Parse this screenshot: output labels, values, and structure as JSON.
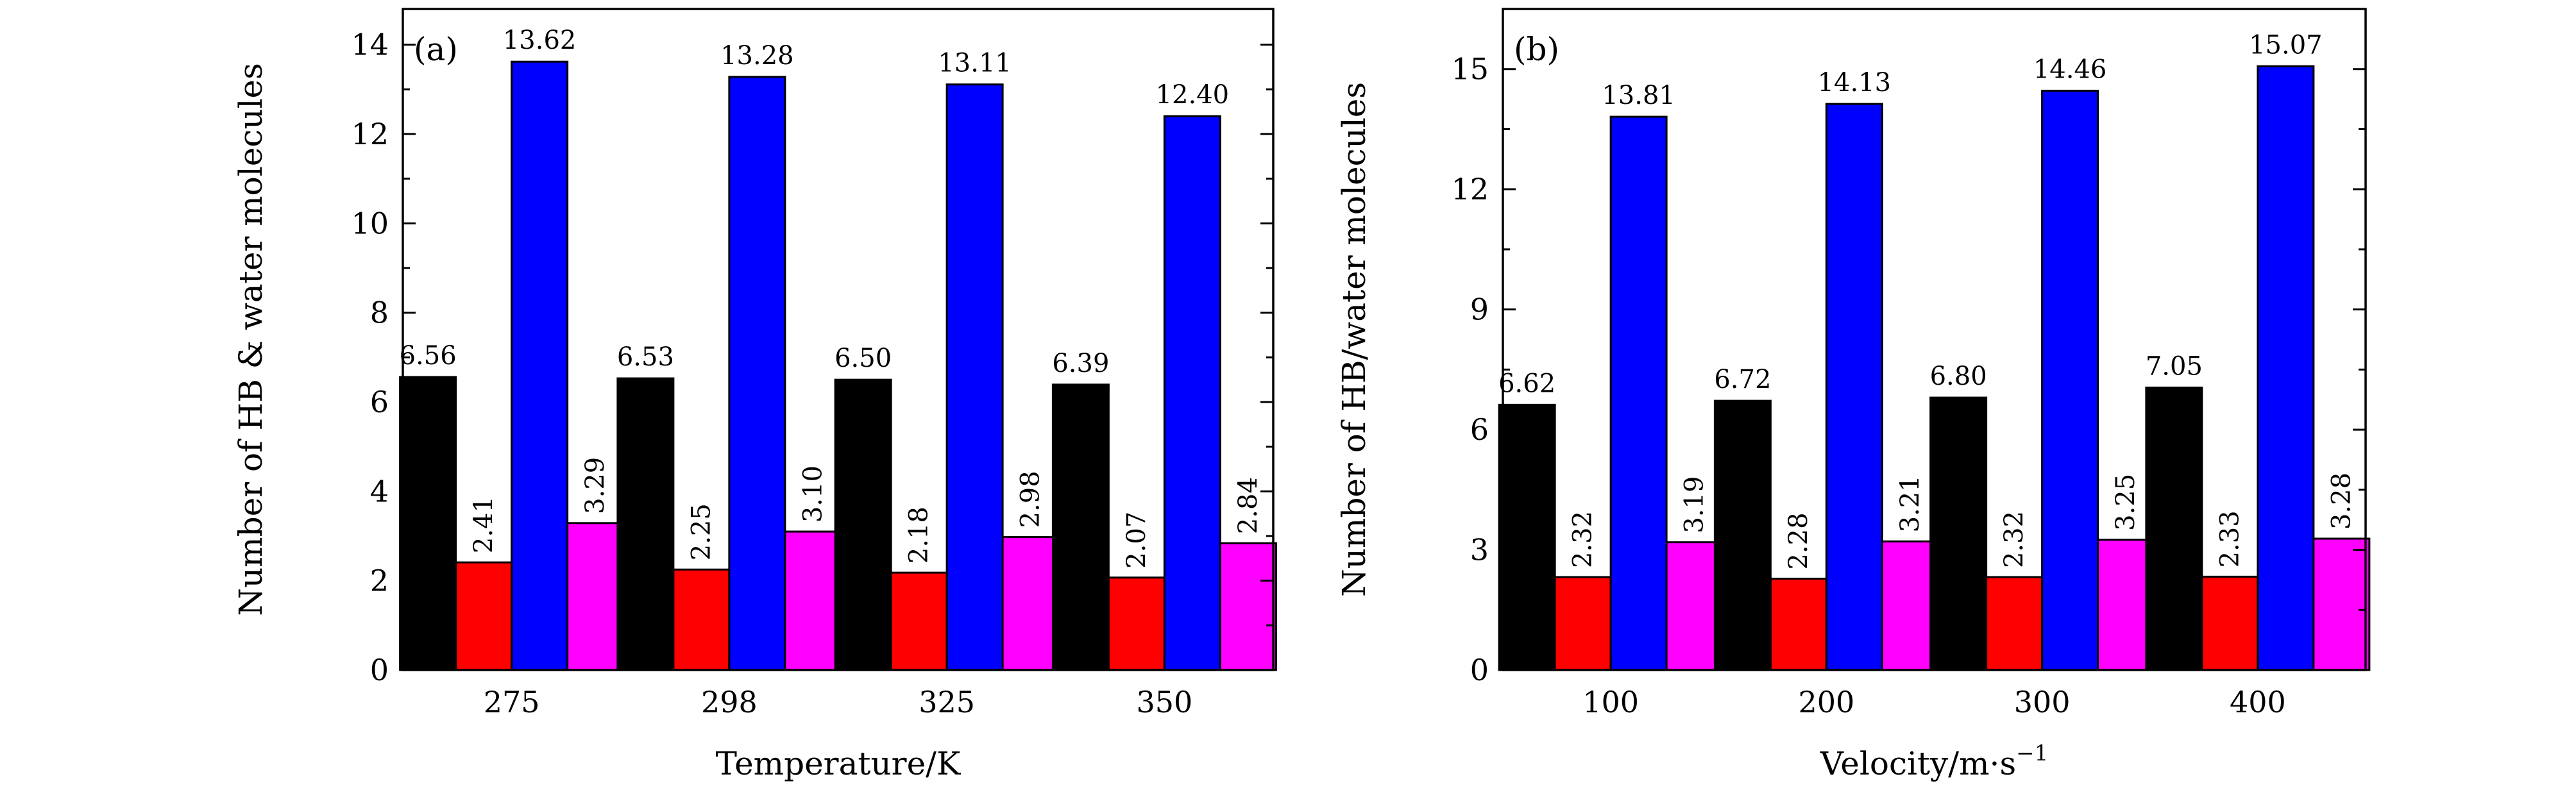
{
  "chart_data": [
    {
      "type": "bar",
      "panel": "(a)",
      "xlabel": "Temperature/K",
      "ylabel": "Number of HB & water molecules",
      "ylim": [
        0,
        14.8
      ],
      "yticks": [
        0,
        2,
        4,
        6,
        8,
        10,
        12,
        14
      ],
      "categories": [
        "275",
        "298",
        "325",
        "350"
      ],
      "series": [
        {
          "name": "black",
          "color": "#000000",
          "values": [
            6.56,
            6.53,
            6.5,
            6.39
          ],
          "labels": [
            "6.56",
            "6.53",
            "6.50",
            "6.39"
          ]
        },
        {
          "name": "red",
          "color": "#ff0000",
          "values": [
            2.41,
            2.25,
            2.18,
            2.07
          ],
          "labels": [
            "2.41",
            "2.25",
            "2.18",
            "2.07"
          ]
        },
        {
          "name": "blue",
          "color": "#0000ff",
          "values": [
            13.62,
            13.28,
            13.11,
            12.4
          ],
          "labels": [
            "13.62",
            "13.28",
            "13.11",
            "12.40"
          ]
        },
        {
          "name": "magenta",
          "color": "#ff00ff",
          "values": [
            3.29,
            3.1,
            2.98,
            2.84
          ],
          "labels": [
            "3.29",
            "3.10",
            "2.98",
            "2.84"
          ]
        }
      ]
    },
    {
      "type": "bar",
      "panel": "(b)",
      "xlabel": "Velocity/m·s",
      "xlabel_superscript": "−1",
      "ylabel": "Number of HB/water molecules",
      "ylim": [
        0,
        16.5
      ],
      "yticks": [
        0,
        3,
        6,
        9,
        12,
        15
      ],
      "categories": [
        "100",
        "200",
        "300",
        "400"
      ],
      "series": [
        {
          "name": "black",
          "color": "#000000",
          "values": [
            6.62,
            6.72,
            6.8,
            7.05
          ],
          "labels": [
            "6.62",
            "6.72",
            "6.80",
            "7.05"
          ]
        },
        {
          "name": "red",
          "color": "#ff0000",
          "values": [
            2.32,
            2.28,
            2.32,
            2.33
          ],
          "labels": [
            "2.32",
            "2.28",
            "2.32",
            "2.33"
          ]
        },
        {
          "name": "blue",
          "color": "#0000ff",
          "values": [
            13.81,
            14.13,
            14.46,
            15.07
          ],
          "labels": [
            "13.81",
            "14.13",
            "14.46",
            "15.07"
          ]
        },
        {
          "name": "magenta",
          "color": "#ff00ff",
          "values": [
            3.19,
            3.21,
            3.25,
            3.28
          ],
          "labels": [
            "3.19",
            "3.21",
            "3.25",
            "3.28"
          ]
        }
      ]
    }
  ]
}
